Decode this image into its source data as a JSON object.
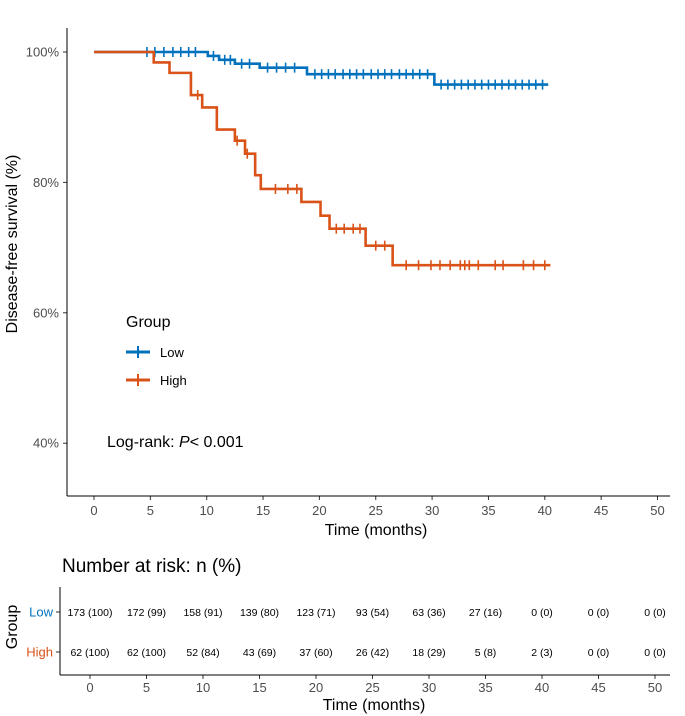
{
  "chart_data": [
    {
      "type": "line",
      "subtype": "kaplan-meier",
      "ylabel": "Disease-free survival (%)",
      "xlabel": "Time (months)",
      "x_ticks": [
        "0",
        "5",
        "10",
        "15",
        "20",
        "25",
        "30",
        "35",
        "40",
        "45",
        "50"
      ],
      "y_ticks": [
        "40%",
        "60%",
        "80%",
        "100%"
      ],
      "xlim": [
        0,
        50
      ],
      "ylim": [
        35,
        100
      ],
      "legend": {
        "title": "Group",
        "position": "center-left"
      },
      "annotation": {
        "prefix": "Log-rank: ",
        "p": "P",
        "suffix": "< 0.001"
      },
      "series": [
        {
          "name": "Low",
          "color": "#0072BD",
          "x": [
            0,
            9.3,
            10.1,
            11.1,
            12.5,
            14.7,
            18.9,
            30.2,
            40.3
          ],
          "y": [
            100,
            100,
            99.4,
            98.8,
            98.2,
            97.6,
            96.6,
            95.0,
            95.0
          ],
          "censor_x": [
            4.7,
            5.4,
            6.2,
            7.0,
            7.7,
            8.4,
            9.0,
            10.6,
            11.6,
            12.1,
            13.1,
            13.8,
            15.4,
            16.2,
            17.0,
            17.8,
            19.6,
            20.2,
            20.8,
            21.4,
            22.1,
            22.7,
            23.3,
            23.9,
            24.6,
            25.2,
            25.8,
            26.4,
            27.1,
            27.7,
            28.3,
            28.9,
            29.6,
            30.8,
            31.4,
            32.0,
            32.6,
            33.2,
            33.8,
            34.4,
            35.0,
            35.6,
            36.2,
            36.8,
            37.4,
            38.0,
            38.6,
            39.2,
            39.8
          ]
        },
        {
          "name": "High",
          "color": "#D95319",
          "x": [
            0,
            5.3,
            6.7,
            8.6,
            9.6,
            10.9,
            12.5,
            13.4,
            14.3,
            14.8,
            18.4,
            20.1,
            20.9,
            24.1,
            26.5,
            40.5
          ],
          "y": [
            100,
            98.4,
            96.8,
            93.4,
            91.5,
            88.1,
            86.4,
            84.4,
            81.1,
            79.0,
            77.0,
            74.9,
            72.9,
            70.3,
            67.3,
            67.3
          ],
          "censor_x": [
            9.2,
            12.7,
            13.6,
            16.1,
            17.2,
            18.0,
            21.5,
            22.2,
            23.0,
            23.6,
            25.0,
            25.8,
            27.7,
            28.8,
            29.9,
            30.7,
            31.6,
            32.5,
            32.9,
            33.3,
            34.1,
            35.6,
            36.3,
            38.1,
            39.0,
            40.0
          ]
        }
      ]
    },
    {
      "type": "table",
      "title": "Number at risk: n (%)",
      "ylabel": "Group",
      "xlabel": "Time (months)",
      "columns": [
        "0",
        "5",
        "10",
        "15",
        "20",
        "25",
        "30",
        "35",
        "40",
        "45",
        "50"
      ],
      "rows": [
        {
          "group": "Low",
          "color": "#0072BD",
          "cells": [
            "173 (100)",
            "172 (99)",
            "158 (91)",
            "139 (80)",
            "123 (71)",
            "93 (54)",
            "63 (36)",
            "27 (16)",
            "0 (0)",
            "0 (0)",
            "0 (0)"
          ]
        },
        {
          "group": "High",
          "color": "#D95319",
          "cells": [
            "62 (100)",
            "62 (100)",
            "52 (84)",
            "43 (69)",
            "37 (60)",
            "26 (42)",
            "18 (29)",
            "5 (8)",
            "2 (3)",
            "0 (0)",
            "0 (0)"
          ]
        }
      ]
    }
  ]
}
